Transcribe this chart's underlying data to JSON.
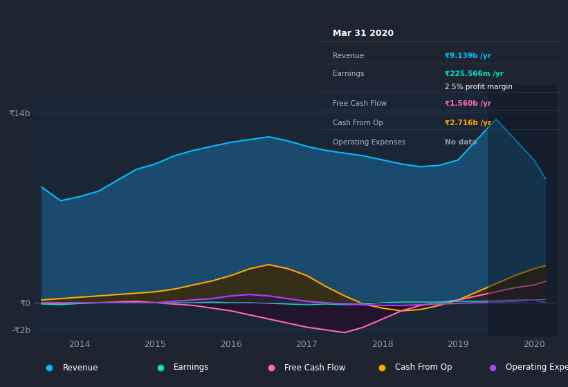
{
  "bg_color": "#1e2530",
  "plot_bg_color": "#1a2535",
  "grid_color": "#2a3d52",
  "axis_label_color": "#8899aa",
  "tooltip_bg": "#0d1117",
  "revenue_color": "#00bfff",
  "earnings_color": "#00e5c8",
  "fcf_color": "#ff69b4",
  "cashfromop_color": "#ffaa00",
  "opex_color": "#aa44ff",
  "revenue_fill": "#1a4a6e",
  "x_years": [
    2013.5,
    2013.75,
    2014.0,
    2014.25,
    2014.5,
    2014.75,
    2015.0,
    2015.25,
    2015.5,
    2015.75,
    2016.0,
    2016.25,
    2016.5,
    2016.75,
    2017.0,
    2017.25,
    2017.5,
    2017.75,
    2018.0,
    2018.25,
    2018.5,
    2018.75,
    2019.0,
    2019.25,
    2019.5,
    2019.75,
    2020.0,
    2020.15
  ],
  "revenue": [
    8.5,
    7.5,
    7.8,
    8.2,
    9.0,
    9.8,
    10.2,
    10.8,
    11.2,
    11.5,
    11.8,
    12.0,
    12.2,
    11.9,
    11.5,
    11.2,
    11.0,
    10.8,
    10.5,
    10.2,
    10.0,
    10.1,
    10.5,
    12.0,
    13.5,
    12.0,
    10.5,
    9.139
  ],
  "earnings": [
    -0.1,
    -0.15,
    -0.05,
    0.0,
    0.0,
    0.0,
    0.0,
    0.0,
    0.0,
    0.05,
    0.0,
    0.0,
    -0.05,
    -0.1,
    -0.15,
    -0.1,
    -0.15,
    -0.1,
    0.0,
    0.05,
    0.05,
    0.05,
    0.1,
    0.1,
    0.15,
    0.2,
    0.22,
    0.226
  ],
  "free_cash_flow": [
    -0.05,
    -0.1,
    -0.05,
    0.0,
    0.05,
    0.1,
    0.0,
    -0.1,
    -0.2,
    -0.4,
    -0.6,
    -0.9,
    -1.2,
    -1.5,
    -1.8,
    -2.0,
    -2.2,
    -1.8,
    -1.2,
    -0.6,
    -0.2,
    0.0,
    0.2,
    0.5,
    0.8,
    1.1,
    1.3,
    1.56
  ],
  "cash_from_op": [
    0.2,
    0.3,
    0.4,
    0.5,
    0.6,
    0.7,
    0.8,
    1.0,
    1.3,
    1.6,
    2.0,
    2.5,
    2.8,
    2.5,
    2.0,
    1.2,
    0.5,
    -0.1,
    -0.4,
    -0.6,
    -0.5,
    -0.2,
    0.2,
    0.8,
    1.4,
    2.0,
    2.5,
    2.716
  ],
  "operating_expenses": [
    0.0,
    0.0,
    0.0,
    0.0,
    0.0,
    0.0,
    0.0,
    0.1,
    0.2,
    0.3,
    0.5,
    0.6,
    0.5,
    0.3,
    0.1,
    0.0,
    -0.1,
    -0.15,
    -0.2,
    -0.2,
    -0.15,
    -0.1,
    -0.05,
    0.0,
    0.05,
    0.1,
    0.2,
    0.0
  ],
  "xlim": [
    2013.4,
    2020.3
  ],
  "ylim": [
    -2.5,
    16.0
  ],
  "xticks": [
    2014,
    2015,
    2016,
    2017,
    2018,
    2019,
    2020
  ],
  "yticks_labels": [
    "₹14b",
    "₹0",
    "-₹2b"
  ],
  "yticks_values": [
    14,
    0,
    -2
  ],
  "legend_items": [
    {
      "label": "Revenue",
      "color": "#00bfff"
    },
    {
      "label": "Earnings",
      "color": "#00e5c8"
    },
    {
      "label": "Free Cash Flow",
      "color": "#ff69b4"
    },
    {
      "label": "Cash From Op",
      "color": "#ffaa00"
    },
    {
      "label": "Operating Expenses",
      "color": "#aa44ff"
    }
  ],
  "tooltip": {
    "title": "Mar 31 2020",
    "rows": [
      {
        "label": "Revenue",
        "value": "₹9.139b /yr",
        "value_color": "#00bfff"
      },
      {
        "label": "Earnings",
        "value": "₹225.566m /yr",
        "value_color": "#00e5c8"
      },
      {
        "label": "",
        "value": "2.5% profit margin",
        "value_color": "#ffffff"
      },
      {
        "label": "Free Cash Flow",
        "value": "₹1.560b /yr",
        "value_color": "#ff69b4"
      },
      {
        "label": "Cash From Op",
        "value": "₹2.716b /yr",
        "value_color": "#ffaa00"
      },
      {
        "label": "Operating Expenses",
        "value": "No data",
        "value_color": "#8899aa"
      }
    ]
  }
}
